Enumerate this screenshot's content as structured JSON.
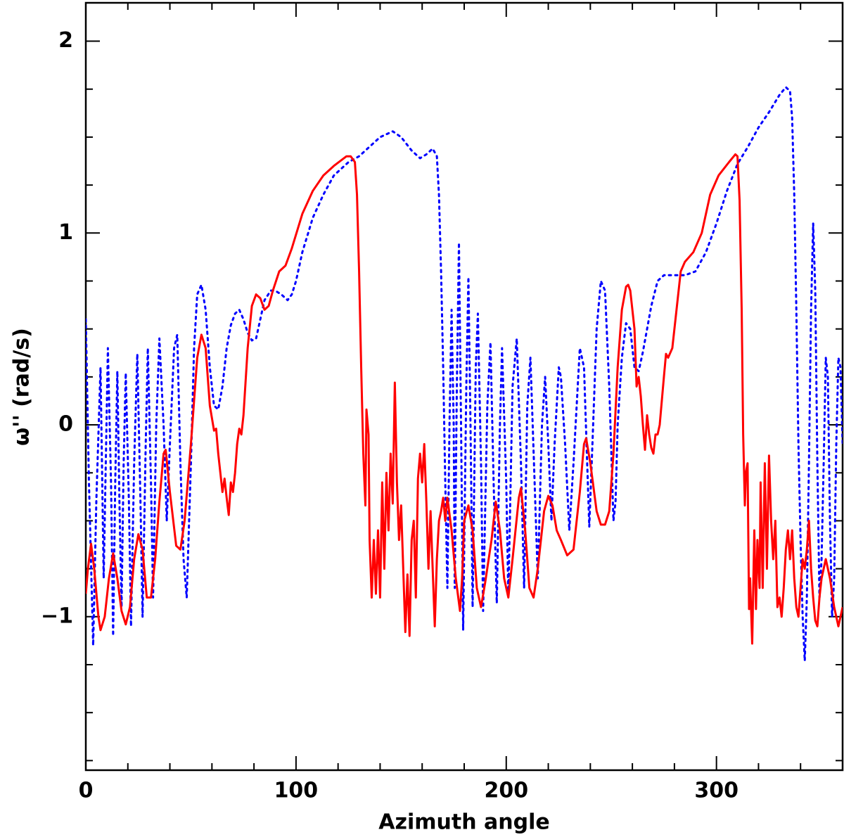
{
  "chart_data": {
    "type": "line",
    "xlabel": "Azimuth angle",
    "ylabel": "ω'' (rad/s)",
    "xlim": [
      0,
      360
    ],
    "ylim": [
      -1.8,
      2.2
    ],
    "xticks": [
      0,
      100,
      200,
      300
    ],
    "yticks": [
      {
        "value": -1,
        "label": "−1"
      },
      0,
      1,
      2
    ],
    "xminorticks": [
      20,
      40,
      60,
      80,
      120,
      140,
      160,
      180,
      220,
      240,
      260,
      280,
      320,
      340
    ],
    "yminorticks": [
      -1.75,
      -1.5,
      -1.25,
      -0.75,
      -0.5,
      -0.25,
      0.25,
      0.5,
      0.75,
      1.25,
      1.5,
      1.75
    ],
    "series": [
      {
        "color": "#0000ff",
        "style": "dotted",
        "x": [
          0,
          1.5,
          3.5,
          5,
          7,
          8.5,
          10.5,
          12,
          13,
          14,
          15,
          16,
          17,
          18,
          19,
          20.5,
          21.5,
          23,
          24.5,
          26,
          27,
          28.5,
          29.5,
          31,
          32,
          33.5,
          35,
          37,
          38.5,
          40,
          42,
          43.5,
          45,
          46.5,
          48,
          50,
          51.5,
          53,
          55,
          57,
          59,
          61,
          63,
          65,
          67,
          69,
          71,
          73,
          75,
          77,
          79,
          81,
          83,
          85,
          88,
          90,
          93,
          96,
          98,
          100,
          103,
          108,
          113,
          118,
          125,
          130,
          135,
          140,
          146,
          150,
          155,
          159,
          162,
          165,
          167,
          168,
          169,
          170,
          171,
          172,
          173,
          174,
          175,
          175.5,
          176.5,
          177.5,
          178.5,
          179.5,
          181,
          182,
          183,
          184,
          185.5,
          186.5,
          188,
          189,
          191,
          192.5,
          194,
          195.5,
          197,
          198,
          200,
          201,
          203,
          205,
          207,
          208.5,
          210,
          211.5,
          213.5,
          215,
          217,
          218.5,
          220,
          221.5,
          223,
          225,
          226,
          228,
          230,
          232,
          235,
          237,
          238.5,
          239.5,
          241,
          243,
          245,
          247,
          249,
          251,
          252,
          253,
          255,
          257,
          259,
          261,
          263,
          265,
          267,
          269,
          272,
          275,
          280,
          285,
          290,
          295,
          300,
          305,
          310,
          315,
          320,
          325,
          330,
          333,
          335,
          336,
          337,
          338,
          339,
          340,
          341,
          342,
          343,
          344,
          345,
          346,
          347,
          348,
          349,
          350,
          351,
          352,
          353,
          354,
          355,
          356,
          357,
          358,
          359,
          360
        ],
        "values": [
          0.55,
          -0.3,
          -1.15,
          -0.4,
          0.3,
          -0.8,
          0.4,
          -0.3,
          -1.1,
          -0.3,
          0.28,
          -0.4,
          -0.95,
          -0.2,
          0.27,
          -0.4,
          -1.05,
          -0.2,
          0.37,
          -0.4,
          -1.0,
          -0.1,
          0.4,
          -0.3,
          -0.9,
          0.0,
          0.45,
          0.0,
          -0.5,
          -0.1,
          0.4,
          0.47,
          -0.2,
          -0.7,
          -0.9,
          -0.2,
          0.4,
          0.68,
          0.73,
          0.6,
          0.3,
          0.1,
          0.08,
          0.2,
          0.4,
          0.52,
          0.58,
          0.6,
          0.55,
          0.48,
          0.44,
          0.45,
          0.55,
          0.65,
          0.7,
          0.7,
          0.68,
          0.65,
          0.68,
          0.75,
          0.9,
          1.08,
          1.2,
          1.3,
          1.37,
          1.4,
          1.45,
          1.5,
          1.53,
          1.5,
          1.43,
          1.39,
          1.41,
          1.44,
          1.4,
          1.2,
          0.8,
          0.3,
          -0.3,
          -0.85,
          0.0,
          0.6,
          0.0,
          -0.85,
          0.2,
          0.95,
          0.0,
          -1.07,
          0.2,
          0.77,
          0.0,
          -0.95,
          0.3,
          0.58,
          -0.2,
          -0.97,
          0.1,
          0.43,
          -0.3,
          -0.93,
          0.0,
          0.4,
          -0.3,
          -0.9,
          0.2,
          0.45,
          -0.2,
          -0.85,
          0.1,
          0.35,
          -0.3,
          -0.8,
          0.0,
          0.25,
          -0.1,
          -0.5,
          -0.1,
          0.3,
          0.25,
          -0.1,
          -0.55,
          -0.2,
          0.4,
          0.3,
          -0.2,
          -0.53,
          -0.1,
          0.5,
          0.75,
          0.7,
          0.2,
          -0.5,
          -0.4,
          0.0,
          0.35,
          0.53,
          0.5,
          0.3,
          0.28,
          0.38,
          0.5,
          0.62,
          0.75,
          0.78,
          0.78,
          0.78,
          0.8,
          0.9,
          1.05,
          1.22,
          1.36,
          1.45,
          1.55,
          1.63,
          1.72,
          1.76,
          1.74,
          1.6,
          1.2,
          0.6,
          -0.1,
          -0.6,
          -1.0,
          -1.23,
          -0.9,
          -0.2,
          0.6,
          1.05,
          0.7,
          -0.2,
          -0.9,
          -0.7,
          -0.2,
          0.35,
          0.25,
          -0.5,
          -1.0,
          -0.8,
          -0.1,
          0.35,
          0.3,
          -0.1
        ]
      },
      {
        "color": "#ff0000",
        "style": "solid",
        "x": [
          0,
          1,
          2.5,
          4,
          6,
          7,
          9,
          11,
          13,
          15,
          17,
          19,
          21,
          23,
          25,
          27,
          29,
          31,
          33,
          35,
          37,
          38,
          40,
          43,
          45,
          47,
          50,
          53,
          55,
          57,
          59,
          61,
          62,
          63,
          65,
          66,
          67,
          68,
          69,
          70,
          71,
          72,
          73,
          74,
          75,
          77,
          79,
          81,
          83,
          85,
          87,
          89,
          92,
          95,
          98,
          103,
          108,
          113,
          118,
          124,
          126,
          128,
          129,
          130,
          131,
          132,
          133,
          133.5,
          134.5,
          135,
          136,
          137,
          138,
          139,
          140,
          141,
          142,
          143,
          144,
          145,
          146,
          147,
          148,
          149,
          150,
          151,
          152,
          153,
          154,
          155,
          156,
          157,
          158,
          159,
          160,
          161,
          162,
          163,
          164,
          165,
          166,
          167,
          168,
          169,
          170,
          171,
          172,
          174,
          176,
          178,
          179,
          180,
          182,
          184,
          186,
          188,
          190,
          193,
          195,
          197,
          199,
          201,
          203,
          206,
          207,
          209,
          211,
          213,
          215,
          218,
          220,
          222,
          224,
          226,
          229,
          232,
          235,
          237,
          238,
          240,
          243,
          245,
          247,
          249,
          251,
          253,
          255,
          257,
          258,
          259,
          261,
          262,
          263,
          264,
          265,
          266,
          267,
          268,
          269,
          270,
          271,
          272,
          273,
          275,
          276,
          277,
          279,
          281,
          283,
          285,
          289,
          293,
          297,
          301,
          306,
          309,
          310,
          311,
          312,
          312.7,
          313.5,
          314,
          314.8,
          315.5,
          316,
          317,
          318,
          318.8,
          319.5,
          320.5,
          321,
          322,
          323,
          324,
          325,
          326,
          327,
          328,
          329,
          330,
          331,
          332,
          333,
          334,
          335,
          336,
          337,
          338,
          339,
          340,
          341,
          342,
          343,
          344,
          345,
          346,
          347,
          348,
          349,
          350,
          352,
          354,
          356,
          358,
          360
        ],
        "values": [
          -0.88,
          -0.75,
          -0.62,
          -0.75,
          -1.0,
          -1.07,
          -1.0,
          -0.8,
          -0.67,
          -0.8,
          -0.97,
          -1.04,
          -0.95,
          -0.7,
          -0.57,
          -0.65,
          -0.9,
          -0.9,
          -0.7,
          -0.4,
          -0.15,
          -0.13,
          -0.35,
          -0.63,
          -0.65,
          -0.5,
          -0.1,
          0.35,
          0.47,
          0.4,
          0.1,
          -0.03,
          -0.02,
          -0.15,
          -0.35,
          -0.28,
          -0.38,
          -0.47,
          -0.3,
          -0.35,
          -0.25,
          -0.1,
          -0.02,
          -0.05,
          0.05,
          0.4,
          0.62,
          0.68,
          0.66,
          0.6,
          0.62,
          0.7,
          0.8,
          0.83,
          0.92,
          1.1,
          1.22,
          1.3,
          1.35,
          1.4,
          1.4,
          1.37,
          1.2,
          0.8,
          0.3,
          -0.15,
          -0.42,
          0.08,
          -0.05,
          -0.6,
          -0.9,
          -0.6,
          -0.88,
          -0.55,
          -0.9,
          -0.3,
          -0.75,
          -0.25,
          -0.55,
          -0.15,
          -0.41,
          0.22,
          -0.3,
          -0.6,
          -0.42,
          -0.75,
          -1.08,
          -0.78,
          -1.1,
          -0.6,
          -0.5,
          -0.9,
          -0.28,
          -0.15,
          -0.3,
          -0.1,
          -0.4,
          -0.75,
          -0.45,
          -0.75,
          -1.05,
          -0.7,
          -0.5,
          -0.45,
          -0.38,
          -0.5,
          -0.38,
          -0.55,
          -0.8,
          -0.97,
          -0.8,
          -0.5,
          -0.42,
          -0.55,
          -0.85,
          -0.95,
          -0.82,
          -0.6,
          -0.4,
          -0.55,
          -0.8,
          -0.9,
          -0.7,
          -0.38,
          -0.33,
          -0.55,
          -0.85,
          -0.9,
          -0.75,
          -0.45,
          -0.37,
          -0.42,
          -0.55,
          -0.6,
          -0.68,
          -0.65,
          -0.35,
          -0.1,
          -0.07,
          -0.2,
          -0.45,
          -0.52,
          -0.52,
          -0.45,
          -0.15,
          0.3,
          0.6,
          0.72,
          0.73,
          0.7,
          0.5,
          0.2,
          0.25,
          0.15,
          0.0,
          -0.13,
          0.05,
          -0.05,
          -0.12,
          -0.15,
          -0.05,
          -0.05,
          0.0,
          0.25,
          0.37,
          0.35,
          0.4,
          0.6,
          0.8,
          0.85,
          0.9,
          1.0,
          1.2,
          1.3,
          1.37,
          1.41,
          1.4,
          1.17,
          0.6,
          -0.05,
          -0.42,
          -0.25,
          -0.2,
          -0.96,
          -0.8,
          -1.14,
          -0.55,
          -0.96,
          -0.6,
          -0.85,
          -0.3,
          -0.85,
          -0.2,
          -0.75,
          -0.16,
          -0.5,
          -0.7,
          -0.5,
          -0.95,
          -0.9,
          -1.0,
          -0.85,
          -0.65,
          -0.55,
          -0.7,
          -0.55,
          -0.8,
          -0.95,
          -1.0,
          -0.85,
          -0.7,
          -0.75,
          -0.65,
          -0.5,
          -0.75,
          -0.9,
          -1.02,
          -1.05,
          -0.9,
          -0.8,
          -0.7,
          -0.8,
          -0.95,
          -1.05,
          -0.95
        ]
      }
    ]
  }
}
